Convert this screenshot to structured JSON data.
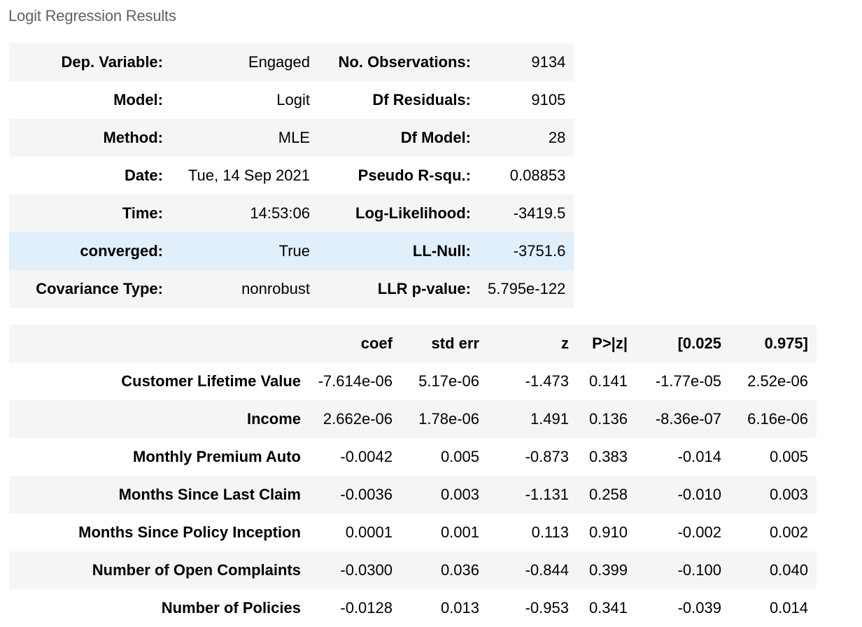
{
  "caption": "Logit Regression Results",
  "summary": [
    {
      "l1": "Dep. Variable:",
      "v1": "Engaged",
      "l2": "No. Observations:",
      "v2": "9134"
    },
    {
      "l1": "Model:",
      "v1": "Logit",
      "l2": "Df Residuals:",
      "v2": "9105"
    },
    {
      "l1": "Method:",
      "v1": "MLE",
      "l2": "Df Model:",
      "v2": "28"
    },
    {
      "l1": "Date:",
      "v1": "Tue, 14 Sep 2021",
      "l2": "Pseudo R-squ.:",
      "v2": "0.08853"
    },
    {
      "l1": "Time:",
      "v1": "14:53:06",
      "l2": "Log-Likelihood:",
      "v2": "-3419.5"
    },
    {
      "l1": "converged:",
      "v1": "True",
      "l2": "LL-Null:",
      "v2": "-3751.6"
    },
    {
      "l1": "Covariance Type:",
      "v1": "nonrobust",
      "l2": "LLR p-value:",
      "v2": "5.795e-122"
    }
  ],
  "coef_table": {
    "headers": [
      "",
      "coef",
      "std err",
      "z",
      "P>|z|",
      "[0.025",
      "0.975]"
    ],
    "rows": [
      {
        "name": "Customer Lifetime Value",
        "cells": [
          "-7.614e-06",
          "5.17e-06",
          "-1.473",
          "0.141",
          "-1.77e-05",
          "2.52e-06"
        ]
      },
      {
        "name": "Income",
        "cells": [
          "2.662e-06",
          "1.78e-06",
          "1.491",
          "0.136",
          "-8.36e-07",
          "6.16e-06"
        ]
      },
      {
        "name": "Monthly Premium Auto",
        "cells": [
          "-0.0042",
          "0.005",
          "-0.873",
          "0.383",
          "-0.014",
          "0.005"
        ]
      },
      {
        "name": "Months Since Last Claim",
        "cells": [
          "-0.0036",
          "0.003",
          "-1.131",
          "0.258",
          "-0.010",
          "0.003"
        ]
      },
      {
        "name": "Months Since Policy Inception",
        "cells": [
          "0.0001",
          "0.001",
          "0.113",
          "0.910",
          "-0.002",
          "0.002"
        ]
      },
      {
        "name": "Number of Open Complaints",
        "cells": [
          "-0.0300",
          "0.036",
          "-0.844",
          "0.399",
          "-0.100",
          "0.040"
        ]
      },
      {
        "name": "Number of Policies",
        "cells": [
          "-0.0128",
          "0.013",
          "-0.953",
          "0.341",
          "-0.039",
          "0.014"
        ]
      }
    ]
  },
  "colors": {
    "row_shade": "#f5f5f5",
    "row_hover": "#e1effb",
    "caption_text": "#616161"
  }
}
